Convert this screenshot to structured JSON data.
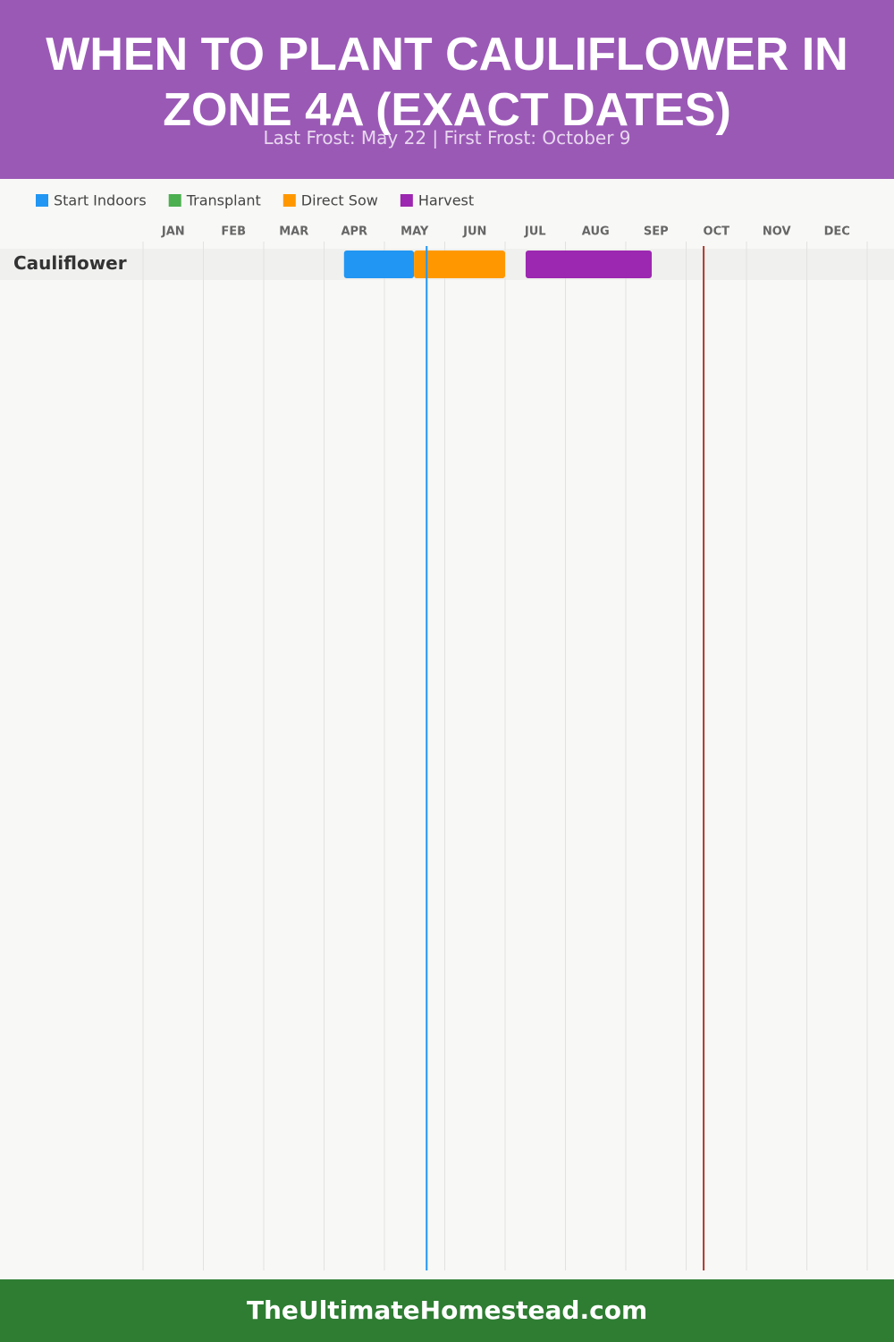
{
  "chart_data": {
    "type": "gantt",
    "title": "WHEN TO PLANT CAULIFLOWER IN ZONE 4A (EXACT DATES)",
    "subtitle": "Last Frost: May 22 | First Frost: October 9",
    "categories": [
      "JAN",
      "FEB",
      "MAR",
      "APR",
      "MAY",
      "JUN",
      "JUL",
      "AUG",
      "SEP",
      "OCT",
      "NOV",
      "DEC"
    ],
    "xlim": [
      0,
      12
    ],
    "rows": [
      "Cauliflower"
    ],
    "series": [
      {
        "name": "Start Indoors",
        "color": "#2196f3",
        "ranges": [
          [
            3.33,
            4.49
          ]
        ]
      },
      {
        "name": "Transplant",
        "color": "#4caf50",
        "ranges": []
      },
      {
        "name": "Direct Sow",
        "color": "#ff9800",
        "ranges": [
          [
            4.49,
            6.0
          ]
        ]
      },
      {
        "name": "Harvest",
        "color": "#9c27b0",
        "ranges": [
          [
            6.34,
            8.43
          ]
        ]
      }
    ],
    "markers": [
      {
        "value": 4.7,
        "color": "#2196f3"
      },
      {
        "value": 9.29,
        "color": "#b03a2e"
      }
    ]
  },
  "footer": "TheUltimateHomestead.com"
}
